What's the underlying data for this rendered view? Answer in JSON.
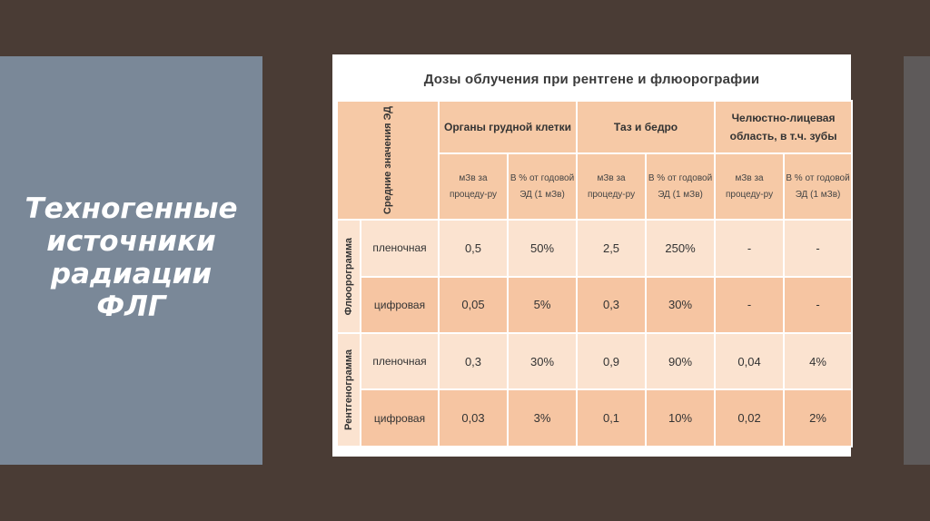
{
  "slide": {
    "title": "Техногенные\nисточники\nрадиации\nФЛГ"
  },
  "table": {
    "title": "Дозы облучения при  рентгене и флюорографии",
    "corner_label": "Средние значения ЭД",
    "groups": [
      "Органы грудной клетки",
      "Таз и бедро",
      "Челюстно-лицевая область, в т.ч. зубы"
    ],
    "sub_headers": [
      "мЗв за процеду-ру",
      "В % от годовой ЭД (1 мЗв)"
    ],
    "sections": [
      {
        "name": "Флюорограмма",
        "rows": [
          {
            "label": "пленочная",
            "values": [
              "0,5",
              "50%",
              "2,5",
              "250%",
              "-",
              "-"
            ]
          },
          {
            "label": "цифровая",
            "values": [
              "0,05",
              "5%",
              "0,3",
              "30%",
              "-",
              "-"
            ]
          }
        ]
      },
      {
        "name": "Рентгенограмма",
        "rows": [
          {
            "label": "пленочная",
            "values": [
              "0,3",
              "30%",
              "0,9",
              "90%",
              "0,04",
              "4%"
            ]
          },
          {
            "label": "цифровая",
            "values": [
              "0,03",
              "3%",
              "0,1",
              "10%",
              "0,02",
              "2%"
            ]
          }
        ]
      }
    ]
  }
}
